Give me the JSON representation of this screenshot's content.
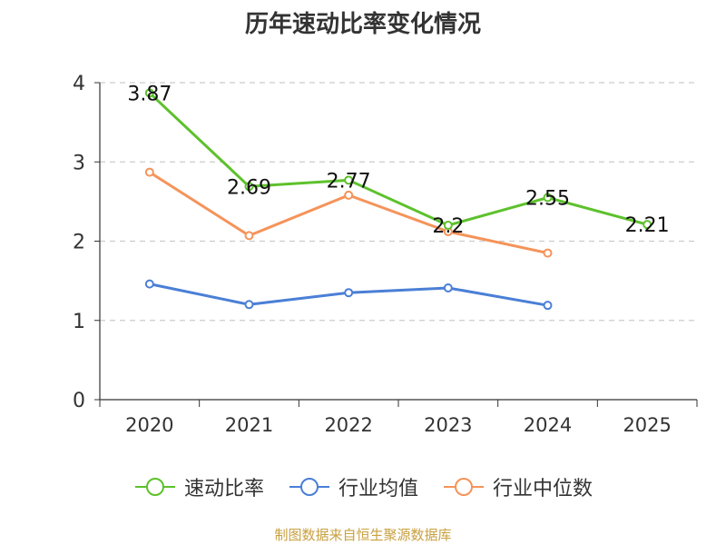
{
  "chart_data": {
    "type": "line",
    "title": "历年速动比率变化情况",
    "categories": [
      "2020",
      "2021",
      "2022",
      "2023",
      "2024",
      "2025"
    ],
    "y_ticks": [
      "0",
      "1",
      "2",
      "3",
      "4"
    ],
    "ylim": [
      0,
      4
    ],
    "grid": true,
    "legend_position": "bottom",
    "series": [
      {
        "name": "速动比率",
        "color": "#5dc12c",
        "values": [
          3.87,
          2.69,
          2.77,
          2.2,
          2.55,
          2.21
        ],
        "labels": [
          "3.87",
          "2.69",
          "2.77",
          "2.2",
          "2.55",
          "2.21"
        ]
      },
      {
        "name": "行业均值",
        "color": "#4a7fd6",
        "values": [
          1.46,
          1.2,
          1.35,
          1.41,
          1.19,
          null
        ]
      },
      {
        "name": "行业中位数",
        "color": "#f5935a",
        "values": [
          2.87,
          2.07,
          2.58,
          2.12,
          1.85,
          null
        ]
      }
    ]
  },
  "source": "制图数据来自恒生聚源数据库"
}
